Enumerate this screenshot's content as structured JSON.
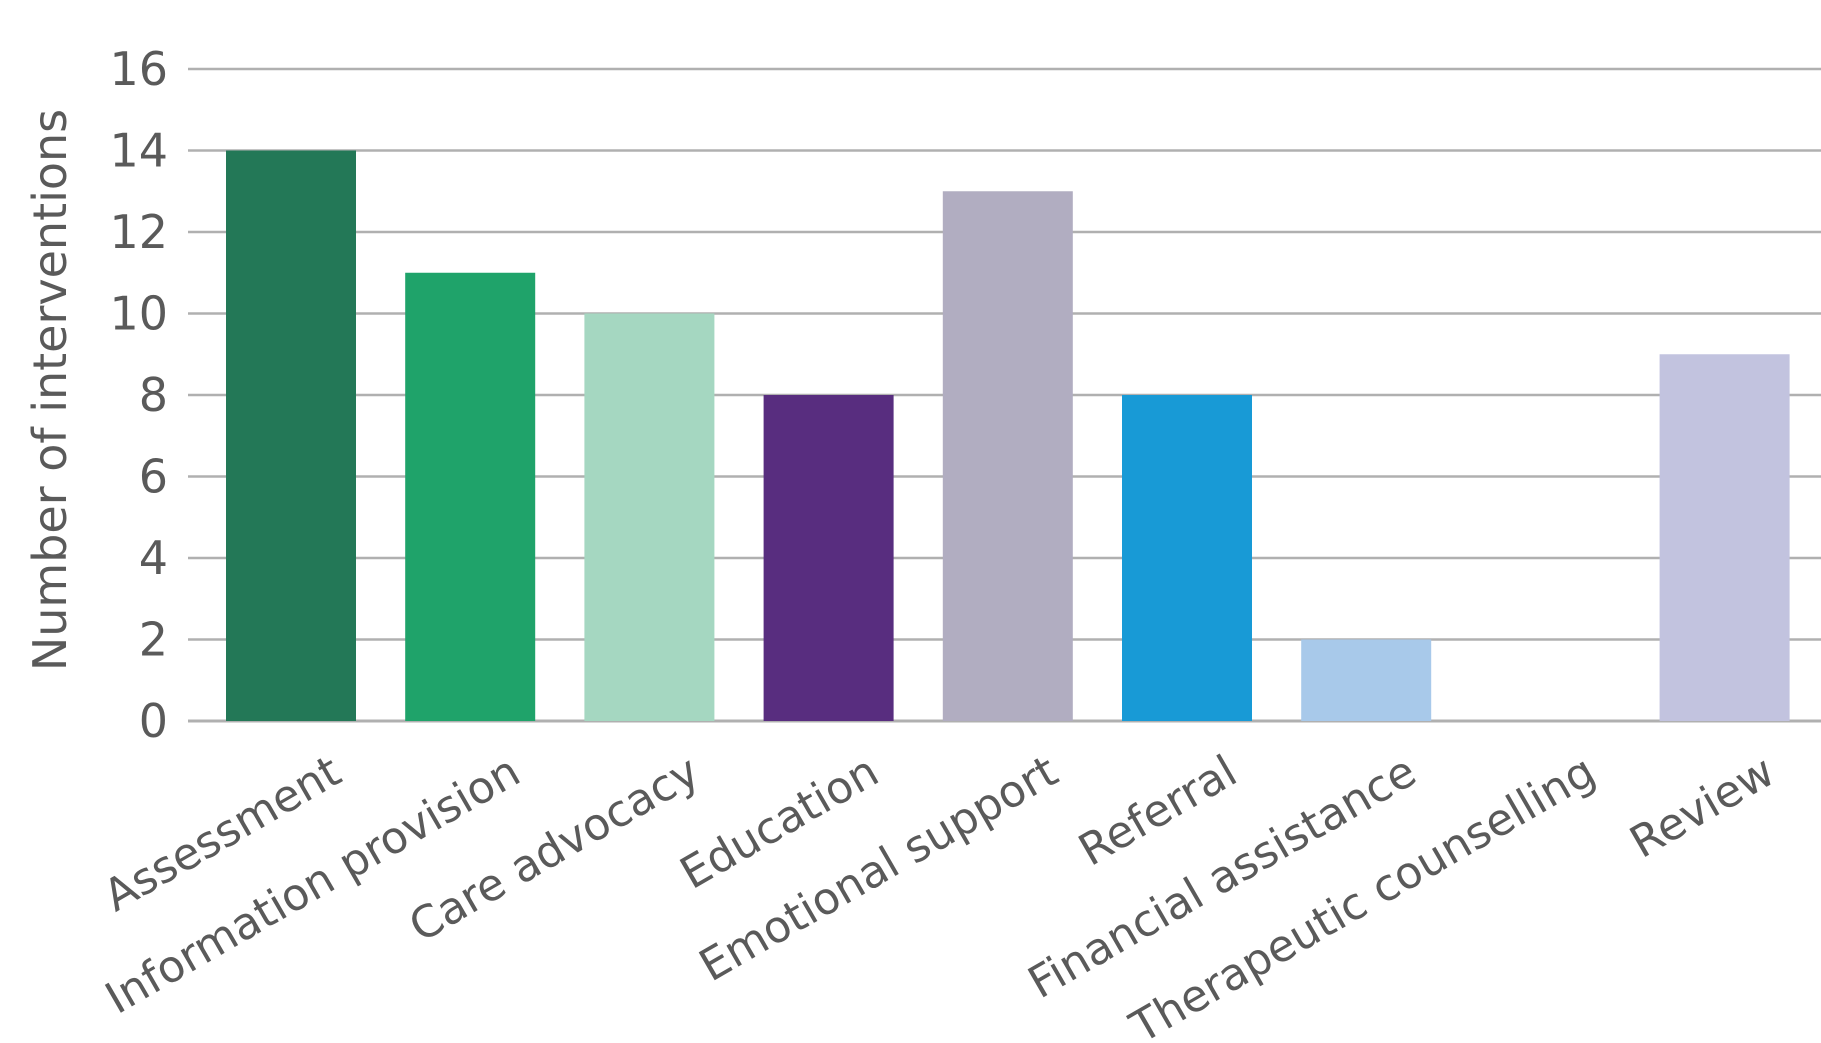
{
  "chart_data": {
    "type": "bar",
    "title": "",
    "xlabel": "",
    "ylabel": "Number of interventions",
    "ylim": [
      0,
      16
    ],
    "yticks": [
      0,
      2,
      4,
      6,
      8,
      10,
      12,
      14,
      16
    ],
    "grid": true,
    "legend": "none",
    "categories": [
      "Assessment",
      "Information provision",
      "Care advocacy",
      "Education",
      "Emotional support",
      "Referral",
      "Financial assistance",
      "Therapeutic counselling",
      "Review"
    ],
    "values": [
      14,
      11,
      10,
      8,
      13,
      8,
      2,
      0,
      9
    ],
    "colors": [
      "#237857",
      "#1fa36a",
      "#a5d7c1",
      "#582d7f",
      "#b1adc1",
      "#189ad6",
      "#a8c9ea",
      "#cfd6ee",
      "#c2c3df"
    ],
    "gridline_color": "#b0b0b0",
    "text_color": "#5a5a5a"
  }
}
